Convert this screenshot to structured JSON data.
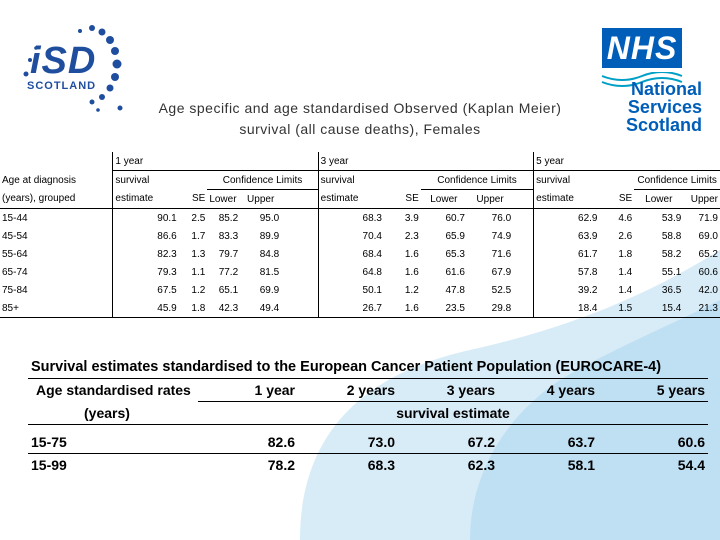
{
  "title": {
    "line1": "Age specific and age standardised Observed (Kaplan Meier)",
    "line2": "survival (all cause deaths), Females"
  },
  "logos": {
    "isd": {
      "main": "iSD",
      "sub": "SCOTLAND"
    },
    "nhs": {
      "badge": "NHS",
      "line1": "National",
      "line2": "Services",
      "line3": "Scotland"
    }
  },
  "colors": {
    "nhs_blue": "#005eb8",
    "isd_blue": "#1f4e9e",
    "wave": "#cfe6f5"
  },
  "table1": {
    "hdr_row1": {
      "g1": "1 year",
      "g2": "3 year",
      "g3": "5 year"
    },
    "hdr_row2": {
      "age": "Age at diagnosis",
      "survival": "survival",
      "cl": "Confidence Limits"
    },
    "hdr_row3": {
      "age": "(years), grouped",
      "estimate": "estimate",
      "se": "SE",
      "lower": "Lower",
      "upper": "Upper"
    },
    "rows": [
      {
        "age": "15-44",
        "e1": "90.1",
        "s1": "2.5",
        "l1": "85.2",
        "u1": "95.0",
        "e3": "68.3",
        "s3": "3.9",
        "l3": "60.7",
        "u3": "76.0",
        "e5": "62.9",
        "s5": "4.6",
        "l5": "53.9",
        "u5": "71.9"
      },
      {
        "age": "45-54",
        "e1": "86.6",
        "s1": "1.7",
        "l1": "83.3",
        "u1": "89.9",
        "e3": "70.4",
        "s3": "2.3",
        "l3": "65.9",
        "u3": "74.9",
        "e5": "63.9",
        "s5": "2.6",
        "l5": "58.8",
        "u5": "69.0"
      },
      {
        "age": "55-64",
        "e1": "82.3",
        "s1": "1.3",
        "l1": "79.7",
        "u1": "84.8",
        "e3": "68.4",
        "s3": "1.6",
        "l3": "65.3",
        "u3": "71.6",
        "e5": "61.7",
        "s5": "1.8",
        "l5": "58.2",
        "u5": "65.2"
      },
      {
        "age": "65-74",
        "e1": "79.3",
        "s1": "1.1",
        "l1": "77.2",
        "u1": "81.5",
        "e3": "64.8",
        "s3": "1.6",
        "l3": "61.6",
        "u3": "67.9",
        "e5": "57.8",
        "s5": "1.4",
        "l5": "55.1",
        "u5": "60.6"
      },
      {
        "age": "75-84",
        "e1": "67.5",
        "s1": "1.2",
        "l1": "65.1",
        "u1": "69.9",
        "e3": "50.1",
        "s3": "1.2",
        "l3": "47.8",
        "u3": "52.5",
        "e5": "39.2",
        "s5": "1.4",
        "l5": "36.5",
        "u5": "42.0"
      },
      {
        "age": "85+",
        "e1": "45.9",
        "s1": "1.8",
        "l1": "42.3",
        "u1": "49.4",
        "e3": "26.7",
        "s3": "1.6",
        "l3": "23.5",
        "u3": "29.8",
        "e5": "18.4",
        "s5": "1.5",
        "l5": "15.4",
        "u5": "21.3"
      }
    ]
  },
  "table2": {
    "title": "Survival estimates standardised to the European Cancer Patient Population (EUROCARE-4)",
    "col_label_1": "Age standardised rates",
    "col_label_2": "(years)",
    "years": [
      "1 year",
      "2 years",
      "3 years",
      "4 years",
      "5 years"
    ],
    "subheader": "survival estimate",
    "rows": [
      {
        "age": "15-75",
        "v1": "82.6",
        "v2": "73.0",
        "v3": "67.2",
        "v4": "63.7",
        "v5": "60.6"
      },
      {
        "age": "15-99",
        "v1": "78.2",
        "v2": "68.3",
        "v3": "62.3",
        "v4": "58.1",
        "v5": "54.4"
      }
    ]
  }
}
